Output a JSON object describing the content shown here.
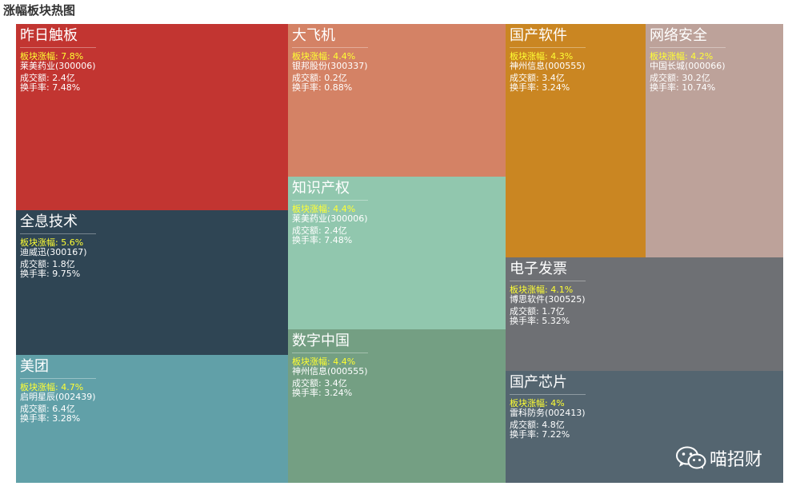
{
  "page": {
    "title": "涨幅板块热图"
  },
  "labels": {
    "pct_prefix": "板块涨幅:",
    "turnover_prefix": "成交额:",
    "rate_prefix": "换手率:"
  },
  "watermark": {
    "icon": "wechat-icon",
    "text": "喵招财"
  },
  "chart_data": {
    "type": "treemap",
    "title": "涨幅板块热图",
    "value_field": "板块涨幅 (%)",
    "sectors": [
      {
        "name": "昨日触板",
        "pct": "7.8%",
        "value": 7.8,
        "stock": "莱美药业(300006)",
        "turnover": "2.4亿",
        "rate": "7.48%",
        "color": "#c23531"
      },
      {
        "name": "全息技术",
        "pct": "5.6%",
        "value": 5.6,
        "stock": "迪威迅(300167)",
        "turnover": "1.8亿",
        "rate": "9.75%",
        "color": "#2f4554"
      },
      {
        "name": "美团",
        "pct": "4.7%",
        "value": 4.7,
        "stock": "启明星辰(002439)",
        "turnover": "6.4亿",
        "rate": "3.28%",
        "color": "#61a0a8"
      },
      {
        "name": "大飞机",
        "pct": "4.4%",
        "value": 4.4,
        "stock": "银邦股份(300337)",
        "turnover": "0.2亿",
        "rate": "0.88%",
        "color": "#d48265"
      },
      {
        "name": "知识产权",
        "pct": "4.4%",
        "value": 4.4,
        "stock": "莱美药业(300006)",
        "turnover": "2.4亿",
        "rate": "7.48%",
        "color": "#91c7ae"
      },
      {
        "name": "数字中国",
        "pct": "4.4%",
        "value": 4.4,
        "stock": "神州信息(000555)",
        "turnover": "3.4亿",
        "rate": "3.24%",
        "color": "#749f83"
      },
      {
        "name": "国产软件",
        "pct": "4.3%",
        "value": 4.3,
        "stock": "神州信息(000555)",
        "turnover": "3.4亿",
        "rate": "3.24%",
        "color": "#ca8622"
      },
      {
        "name": "网络安全",
        "pct": "4.2%",
        "value": 4.2,
        "stock": "中国长城(000066)",
        "turnover": "30.2亿",
        "rate": "10.74%",
        "color": "#bda29a"
      },
      {
        "name": "电子发票",
        "pct": "4.1%",
        "value": 4.1,
        "stock": "博思软件(300525)",
        "turnover": "1.7亿",
        "rate": "5.32%",
        "color": "#6e7074"
      },
      {
        "name": "国产芯片",
        "pct": "4%",
        "value": 4.0,
        "stock": "雷科防务(002413)",
        "turnover": "4.8亿",
        "rate": "7.22%",
        "color": "#546570"
      }
    ]
  }
}
